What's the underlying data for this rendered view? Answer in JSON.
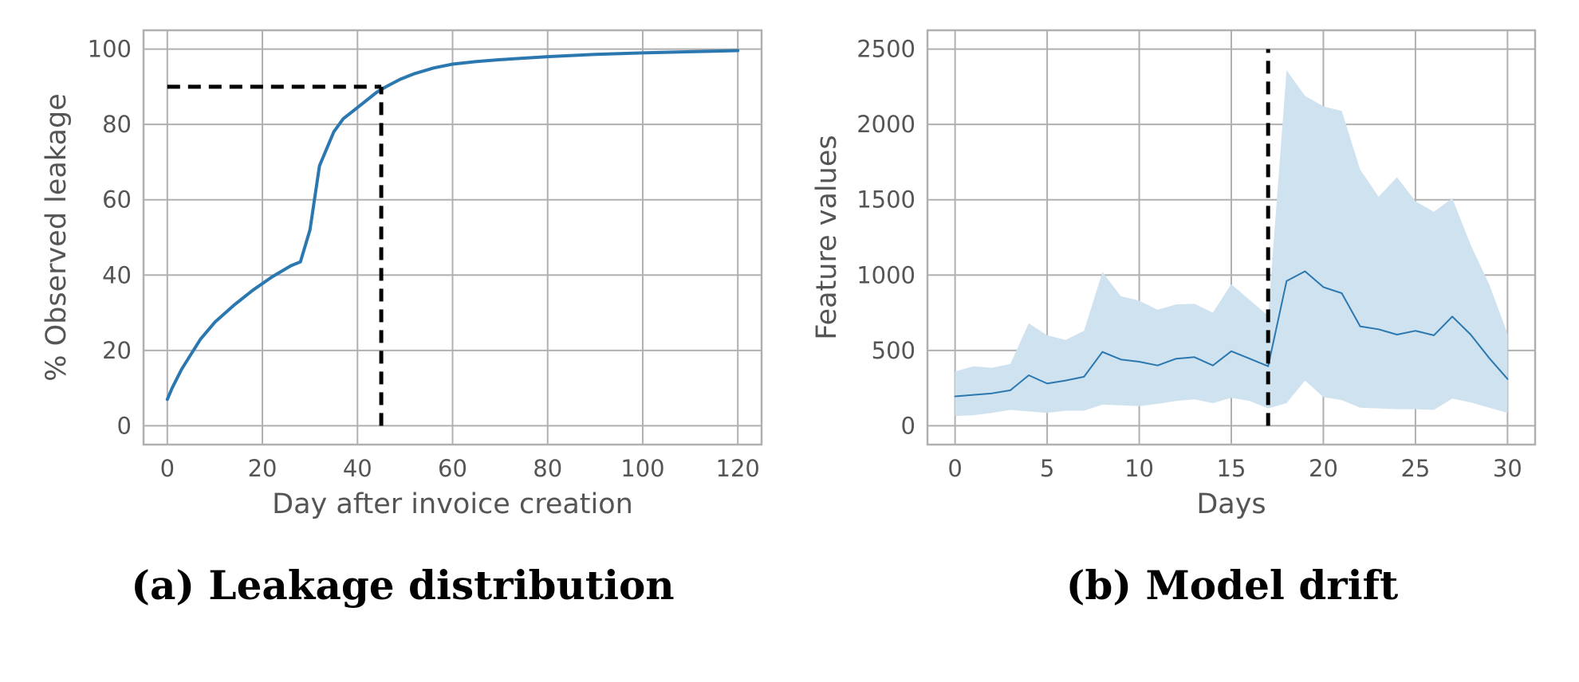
{
  "colors": {
    "line": "#2b78b0",
    "band": "#cfe2ef",
    "grid": "#b0b0b0",
    "text": "#555555",
    "dashed": "#000000"
  },
  "captions": {
    "a": "(a) Leakage distribution",
    "b": "(b) Model drift"
  },
  "chart_data": [
    {
      "type": "line",
      "xlabel": "Day after invoice creation",
      "ylabel": "% Observed leakage",
      "xlim": [
        -5,
        125
      ],
      "ylim": [
        -5,
        105
      ],
      "xticks": [
        0,
        20,
        40,
        60,
        80,
        100,
        120
      ],
      "yticks": [
        0,
        20,
        40,
        60,
        80,
        100
      ],
      "grid": true,
      "series": [
        {
          "x": [
            0,
            1,
            3,
            5,
            7,
            10,
            14,
            18,
            22,
            26,
            28,
            30,
            32,
            35,
            37,
            40,
            42,
            44,
            46,
            49,
            52,
            56,
            60,
            65,
            70,
            80,
            90,
            100,
            110,
            120
          ],
          "y": [
            7,
            10,
            15,
            19,
            23,
            27.5,
            32,
            36,
            39.5,
            42.5,
            43.5,
            52,
            69,
            78,
            81.5,
            84.5,
            86.5,
            88.5,
            90,
            92,
            93.5,
            95,
            96,
            96.7,
            97.2,
            98,
            98.6,
            99,
            99.3,
            99.6
          ]
        }
      ],
      "annotations": [
        {
          "type": "dashed_hline",
          "y": 90,
          "x_from": 0,
          "x_to": 45
        },
        {
          "type": "dashed_vline",
          "x": 45,
          "y_from": 0,
          "y_to": 90
        }
      ]
    },
    {
      "type": "area",
      "xlabel": "Days",
      "ylabel": "Feature values",
      "xlim": [
        -1.5,
        31.5
      ],
      "ylim": [
        -125,
        2625
      ],
      "xticks": [
        0,
        5,
        10,
        15,
        20,
        25,
        30
      ],
      "yticks": [
        0,
        500,
        1000,
        1500,
        2000,
        2500
      ],
      "grid": true,
      "series": [
        {
          "x": [
            0,
            1,
            2,
            3,
            4,
            5,
            6,
            7,
            8,
            9,
            10,
            11,
            12,
            13,
            14,
            15,
            16,
            17,
            18,
            19,
            20,
            21,
            22,
            23,
            24,
            25,
            26,
            27,
            28,
            29,
            30
          ],
          "y": [
            195,
            205,
            215,
            235,
            335,
            280,
            300,
            325,
            490,
            440,
            425,
            400,
            445,
            455,
            400,
            495,
            445,
            395,
            960,
            1025,
            920,
            880,
            660,
            640,
            605,
            630,
            600,
            725,
            605,
            450,
            310
          ],
          "upper": [
            360,
            395,
            385,
            410,
            680,
            600,
            570,
            630,
            1020,
            860,
            830,
            770,
            805,
            810,
            750,
            940,
            835,
            730,
            2360,
            2190,
            2120,
            2090,
            1700,
            1520,
            1650,
            1490,
            1420,
            1510,
            1200,
            940,
            610
          ],
          "lower": [
            65,
            70,
            85,
            105,
            95,
            85,
            100,
            100,
            140,
            135,
            130,
            145,
            165,
            175,
            150,
            185,
            165,
            115,
            150,
            300,
            190,
            170,
            120,
            115,
            110,
            110,
            105,
            180,
            155,
            120,
            85
          ]
        }
      ],
      "annotations": [
        {
          "type": "dashed_vline",
          "x": 17,
          "y_from": 0,
          "y_to": 2500
        }
      ]
    }
  ]
}
